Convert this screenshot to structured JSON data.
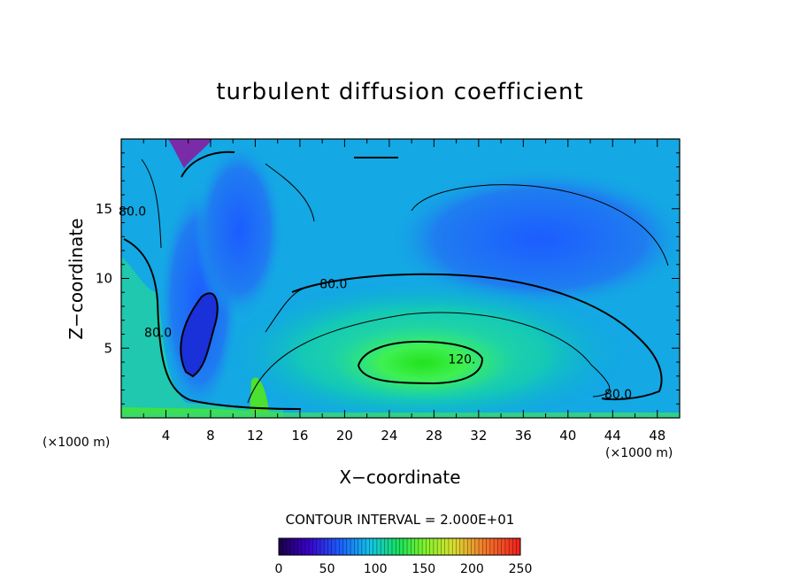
{
  "chart_data": {
    "type": "heatmap",
    "title": "turbulent diffusion coefficient",
    "xlabel": "X−coordinate",
    "ylabel": "Z−coordinate",
    "x_unit": "(×1000 m)",
    "y_unit": "(×1000 m)",
    "xlim": [
      0,
      50
    ],
    "ylim": [
      0,
      20
    ],
    "x_ticks": [
      4,
      8,
      12,
      16,
      20,
      24,
      28,
      32,
      36,
      40,
      44,
      48
    ],
    "y_ticks": [
      5,
      10,
      15
    ],
    "contour_interval_text": "CONTOUR INTERVAL = 2.000E+01",
    "contour_labels": [
      {
        "text": "80.0",
        "x": 1.0,
        "y": 14.5
      },
      {
        "text": "80.0",
        "x": 3.3,
        "y": 5.8
      },
      {
        "text": "80.0",
        "x": 19.0,
        "y": 9.3
      },
      {
        "text": "120.",
        "x": 30.5,
        "y": 3.9
      },
      {
        "text": "80.0",
        "x": 44.5,
        "y": 1.4
      }
    ],
    "colorbar": {
      "min": 0,
      "max": 250,
      "ticks": [
        "0",
        "50",
        "100",
        "150",
        "200",
        "250"
      ]
    }
  }
}
